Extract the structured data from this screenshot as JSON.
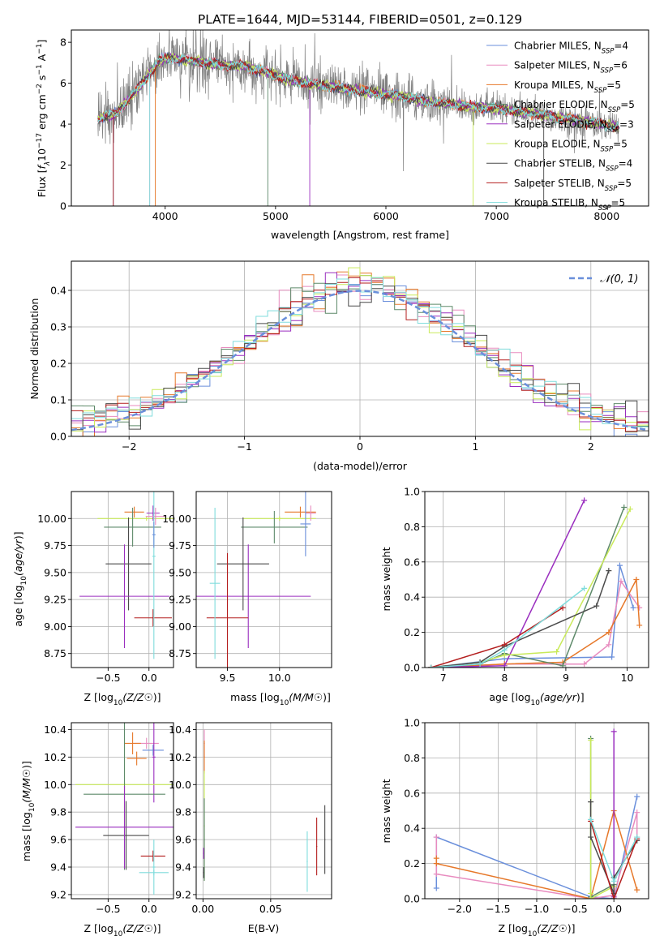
{
  "figure": {
    "title": "PLATE=1644, MJD=53144, FIBERID=0501, z=0.129"
  },
  "series_styles": [
    {
      "name": "Chabrier MILES",
      "color": "#6a8fdb"
    },
    {
      "name": "Salpeter MILES",
      "color": "#e88bbf"
    },
    {
      "name": "Kroupa MILES",
      "color": "#e6782a"
    },
    {
      "name": "Chabrier ELODIE",
      "color": "#5e8a6a"
    },
    {
      "name": "Salpeter ELODIE",
      "color": "#9a2ebf"
    },
    {
      "name": "Kroupa ELODIE",
      "color": "#c9ea5a"
    },
    {
      "name": "Chabrier STELIB",
      "color": "#4a4a4a"
    },
    {
      "name": "Salpeter STELIB",
      "color": "#b41e1e"
    },
    {
      "name": "Kroupa STELIB",
      "color": "#7fdcdc"
    }
  ],
  "chart_data": [
    {
      "id": "spectrum",
      "type": "line",
      "title": "PLATE=1644, MJD=53144, FIBERID=0501, z=0.129",
      "xlabel": "wavelength [Angstrom, rest frame]",
      "ylabel_parts": [
        "Flux [",
        "f",
        "λ",
        "10",
        "−17",
        " erg cm",
        "−2",
        " s",
        "−1",
        " A",
        "−1",
        "]"
      ],
      "xlim": [
        3150,
        8380
      ],
      "ylim": [
        0,
        8.6
      ],
      "xticks": [
        4000,
        5000,
        6000,
        7000,
        8000
      ],
      "yticks": [
        0,
        2,
        4,
        6,
        8
      ],
      "data_color": "#808080",
      "legend_position": "upper right",
      "legend": [
        {
          "label": "Chabrier MILES, N",
          "sub": "SSP",
          "tail": "=4"
        },
        {
          "label": "Salpeter MILES, N",
          "sub": "SSP",
          "tail": "=6"
        },
        {
          "label": "Kroupa MILES, N",
          "sub": "SSP",
          "tail": "=5"
        },
        {
          "label": "Chabrier ELODIE, N",
          "sub": "SSP",
          "tail": "=5"
        },
        {
          "label": "Salpeter ELODIE, N",
          "sub": "SSP",
          "tail": "=3"
        },
        {
          "label": "Kroupa ELODIE, N",
          "sub": "SSP",
          "tail": "=5"
        },
        {
          "label": "Chabrier STELIB, N",
          "sub": "SSP",
          "tail": "=4"
        },
        {
          "label": "Salpeter STELIB, N",
          "sub": "SSP",
          "tail": "=5"
        },
        {
          "label": "Kroupa STELIB, N",
          "sub": "SSP",
          "tail": "=5"
        }
      ],
      "model_profile": {
        "x": [
          3400,
          3550,
          3700,
          3850,
          3950,
          4000,
          4100,
          4300,
          4500,
          4700,
          4900,
          5100,
          5300,
          5500,
          5800,
          6100,
          6400,
          6700,
          7000,
          7300,
          7600,
          7900,
          8100
        ],
        "y": [
          4.3,
          4.5,
          5.4,
          6.4,
          7.1,
          7.2,
          7.2,
          7.05,
          6.9,
          6.85,
          6.55,
          6.2,
          6.0,
          5.85,
          5.6,
          5.4,
          5.1,
          4.9,
          4.75,
          4.55,
          4.3,
          4.05,
          3.85
        ]
      }
    },
    {
      "id": "residuals",
      "type": "step-histogram",
      "xlabel": "(data-model)/error",
      "ylabel": "Normed distribution",
      "xlim": [
        -2.5,
        2.5
      ],
      "ylim": [
        0,
        0.48
      ],
      "xticks": [
        -2,
        -1,
        0,
        1,
        2
      ],
      "yticks": [
        0.0,
        0.1,
        0.2,
        0.3,
        0.4
      ],
      "legend_position": "upper right",
      "legend": [
        {
          "label": "𝒩(0, 1)",
          "color": "#6a8fdb"
        }
      ],
      "bin_width": 0.1
    },
    {
      "id": "age-vs-Z",
      "type": "errorbar",
      "xlabel": "Z [log10(Z/Z☉)]",
      "ylabel": "age  [log10(age/yr)]",
      "xlim": [
        -0.95,
        0.3
      ],
      "ylim": [
        8.62,
        10.25
      ],
      "xticks": [
        -0.5,
        0.0
      ],
      "yticks": [
        8.75,
        9.0,
        9.25,
        9.5,
        9.75,
        10.0
      ]
    },
    {
      "id": "age-vs-mass",
      "type": "errorbar",
      "xlabel": "mass [log10(M/M☉)]",
      "ylabel": "",
      "xlim": [
        9.2,
        10.5
      ],
      "ylim": [
        8.62,
        10.25
      ],
      "xticks": [
        9.5,
        10.0
      ],
      "yticks": [
        8.75,
        9.0,
        9.25,
        9.5,
        9.75,
        10.0
      ]
    },
    {
      "id": "massweight-vs-age",
      "type": "line",
      "xlabel": "age  [log10(age/yr)]",
      "ylabel": "mass weight",
      "xlim": [
        6.7,
        10.35
      ],
      "ylim": [
        0,
        1.0
      ],
      "xticks": [
        7,
        8,
        9,
        10
      ],
      "yticks": [
        0.0,
        0.2,
        0.4,
        0.6,
        0.8,
        1.0
      ],
      "series": [
        {
          "name": "Chabrier MILES",
          "x": [
            6.8,
            8.0,
            9.75,
            9.88,
            10.1
          ],
          "y": [
            0.0,
            0.05,
            0.06,
            0.58,
            0.34
          ]
        },
        {
          "name": "Salpeter MILES",
          "x": [
            6.8,
            8.0,
            9.3,
            9.7,
            9.9,
            10.2
          ],
          "y": [
            0.0,
            0.02,
            0.02,
            0.13,
            0.49,
            0.34
          ]
        },
        {
          "name": "Kroupa MILES",
          "x": [
            6.8,
            8.0,
            8.95,
            9.7,
            10.15,
            10.2
          ],
          "y": [
            0.0,
            0.02,
            0.03,
            0.2,
            0.5,
            0.24
          ]
        },
        {
          "name": "Chabrier ELODIE",
          "x": [
            6.8,
            7.6,
            8.0,
            8.95,
            9.95
          ],
          "y": [
            0.0,
            0.02,
            0.08,
            0.01,
            0.91
          ]
        },
        {
          "name": "Salpeter ELODIE",
          "x": [
            6.8,
            8.0,
            9.3
          ],
          "y": [
            0.0,
            0.01,
            0.95
          ]
        },
        {
          "name": "Kroupa ELODIE",
          "x": [
            6.8,
            7.6,
            8.0,
            8.85,
            10.05
          ],
          "y": [
            0.0,
            0.03,
            0.07,
            0.09,
            0.9
          ]
        },
        {
          "name": "Chabrier STELIB",
          "x": [
            6.8,
            7.6,
            8.0,
            9.5,
            9.7
          ],
          "y": [
            0.0,
            0.03,
            0.12,
            0.35,
            0.55
          ]
        },
        {
          "name": "Salpeter STELIB",
          "x": [
            6.8,
            8.0,
            8.95
          ],
          "y": [
            0.0,
            0.13,
            0.34
          ]
        },
        {
          "name": "Kroupa STELIB",
          "x": [
            6.8,
            7.6,
            8.0,
            9.3
          ],
          "y": [
            0.0,
            0.02,
            0.1,
            0.45
          ]
        }
      ]
    },
    {
      "id": "mass-vs-Z",
      "type": "errorbar",
      "xlabel": "Z [log10(Z/Z☉)]",
      "ylabel": "mass [log10(M/M☉)]",
      "xlim": [
        -0.95,
        0.3
      ],
      "ylim": [
        9.17,
        10.45
      ],
      "xticks": [
        -0.5,
        0.0
      ],
      "yticks": [
        9.2,
        9.4,
        9.6,
        9.8,
        10.0,
        10.2,
        10.4
      ]
    },
    {
      "id": "mass-vs-ebv",
      "type": "errorbar",
      "xlabel": "E(B-V)",
      "ylabel": "",
      "xlim": [
        -0.005,
        0.095
      ],
      "ylim": [
        9.17,
        10.45
      ],
      "xticks": [
        0.0,
        0.05
      ],
      "yticks": [
        9.2,
        9.4,
        9.6,
        9.8,
        10.0,
        10.2,
        10.4
      ]
    },
    {
      "id": "massweight-vs-Z",
      "type": "line",
      "xlabel": "Z [log10(Z/Z☉)]",
      "ylabel": "mass weight",
      "xlim": [
        -2.45,
        0.45
      ],
      "ylim": [
        0,
        1.0
      ],
      "xticks": [
        -2.0,
        -1.5,
        -1.0,
        -0.5,
        0.0
      ],
      "yticks": [
        0.0,
        0.2,
        0.4,
        0.6,
        0.8,
        1.0
      ],
      "series": [
        {
          "name": "Chabrier MILES",
          "x": [
            -2.3,
            -2.3,
            -0.3,
            0.0,
            0.3
          ],
          "y": [
            0.06,
            0.35,
            0.01,
            0.0,
            0.58
          ]
        },
        {
          "name": "Salpeter MILES",
          "x": [
            -2.3,
            -2.3,
            -0.3,
            0.0,
            0.3,
            0.3
          ],
          "y": [
            0.35,
            0.14,
            0.0,
            0.02,
            0.49,
            0.35
          ]
        },
        {
          "name": "Kroupa MILES",
          "x": [
            -2.3,
            -2.3,
            -0.3,
            0.0,
            0.3
          ],
          "y": [
            0.23,
            0.2,
            0.0,
            0.5,
            0.05
          ]
        },
        {
          "name": "Chabrier ELODIE",
          "x": [
            -0.3,
            -0.3,
            0.0,
            0.0
          ],
          "y": [
            0.91,
            0.01,
            0.08,
            0.0
          ]
        },
        {
          "name": "Salpeter ELODIE",
          "x": [
            0.0,
            0.0
          ],
          "y": [
            0.95,
            0.01
          ]
        },
        {
          "name": "Kroupa ELODIE",
          "x": [
            -0.3,
            -0.3,
            -0.3,
            0.0
          ],
          "y": [
            0.9,
            0.03,
            0.0,
            0.07
          ]
        },
        {
          "name": "Chabrier STELIB",
          "x": [
            -0.3,
            -0.3,
            0.0,
            0.0,
            0.3
          ],
          "y": [
            0.55,
            0.35,
            0.03,
            0.12,
            0.33
          ]
        },
        {
          "name": "Salpeter STELIB",
          "x": [
            -0.3,
            0.0,
            0.3
          ],
          "y": [
            0.44,
            0.0,
            0.34
          ]
        },
        {
          "name": "Kroupa STELIB",
          "x": [
            -0.3,
            0.0,
            0.3
          ],
          "y": [
            0.45,
            0.1,
            0.35
          ]
        }
      ]
    }
  ]
}
